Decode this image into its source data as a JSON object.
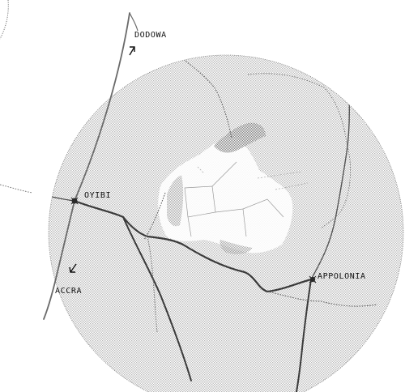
{
  "map": {
    "labels": {
      "dodowa": "DODOWA",
      "oyibi": "OYIBI",
      "accra": "ACCRA",
      "appolonia": "APPOLONIA"
    },
    "colors": {
      "background": "#ffffff",
      "disc_dots": "#b9b9b9",
      "dense_dots": "#6f6f6f",
      "highway": "#6a6a6a",
      "road": "#3a3a3a",
      "boundary": "#555555",
      "outline": "#777777",
      "text": "#111111",
      "marker": "#2b2b2b"
    }
  }
}
